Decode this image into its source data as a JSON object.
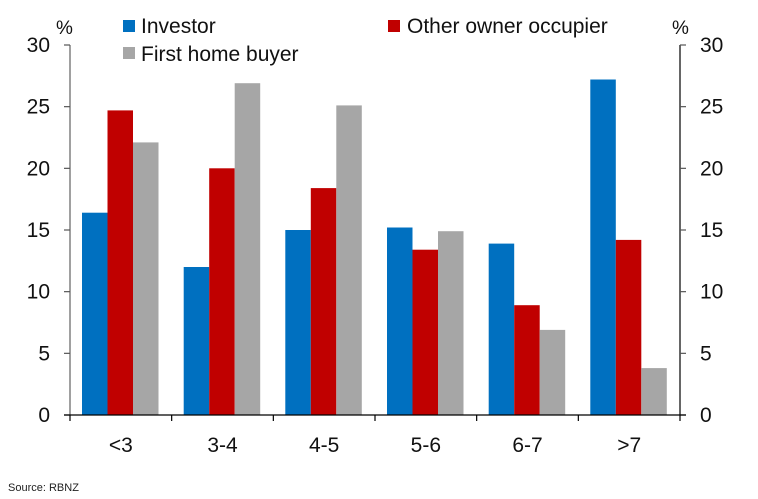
{
  "chart_data": {
    "type": "bar",
    "title": "",
    "xlabel": "",
    "ylabel": "%",
    "y2label": "%",
    "ylim": [
      0,
      30
    ],
    "yticks": [
      0,
      5,
      10,
      15,
      20,
      25,
      30
    ],
    "grid": false,
    "legend_position": "top",
    "categories": [
      "<3",
      "3-4",
      "4-5",
      "5-6",
      "6-7",
      ">7"
    ],
    "series": [
      {
        "name": "Investor",
        "color": "#0070C0",
        "values": [
          16.4,
          12.0,
          15.0,
          15.2,
          13.9,
          27.2
        ]
      },
      {
        "name": "Other owner occupier",
        "color": "#C00000",
        "values": [
          24.7,
          20.0,
          18.4,
          13.4,
          8.9,
          14.2
        ]
      },
      {
        "name": "First home buyer",
        "color": "#A6A6A6",
        "values": [
          22.1,
          26.9,
          25.1,
          14.9,
          6.9,
          3.8
        ]
      }
    ],
    "source": "Source: RBNZ"
  }
}
